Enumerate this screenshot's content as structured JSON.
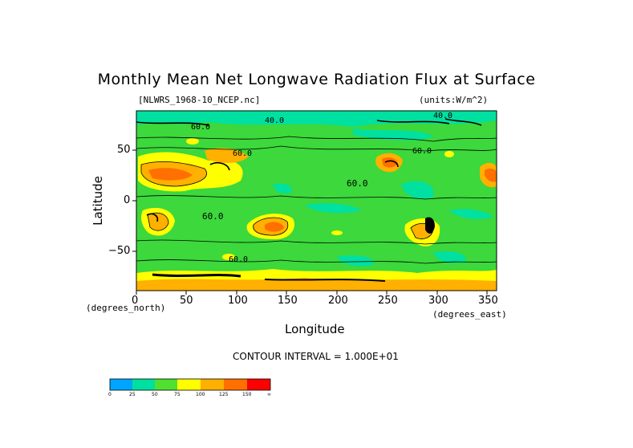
{
  "title": "Monthly Mean Net Longwave Radiation Flux at Surface",
  "file_label": "[NLWRS_1968-10_NCEP.nc]",
  "units_label": "(units:W/m^2)",
  "axes": {
    "xlabel": "Longitude",
    "ylabel": "Latitude",
    "x_unit": "(degrees_east)",
    "y_unit": "(degrees_north)",
    "x_ticks": [
      "0",
      "50",
      "100",
      "150",
      "200",
      "250",
      "300",
      "350"
    ],
    "y_ticks": [
      "50",
      "0",
      "−50"
    ]
  },
  "contour_interval": "CONTOUR INTERVAL = 1.000E+01",
  "contour_labels": [
    "60.0",
    "60.0",
    "60.0",
    "60.0",
    "60.0",
    "60.0",
    "40.0",
    "40.0"
  ],
  "colorbar": {
    "ticks": [
      "0",
      "25",
      "50",
      "75",
      "100",
      "125",
      "150",
      "∞"
    ],
    "colors": [
      "#00a5ff",
      "#00e0a0",
      "#50e030",
      "#ffff00",
      "#ffb000",
      "#ff7000",
      "#ff0000"
    ]
  },
  "legend_colors": {
    "ocean": "#3cd83c",
    "low": "#00e0a0",
    "mid": "#ffff00",
    "high": "#ffb000",
    "higher": "#ff7000",
    "max": "#ff0000"
  }
}
